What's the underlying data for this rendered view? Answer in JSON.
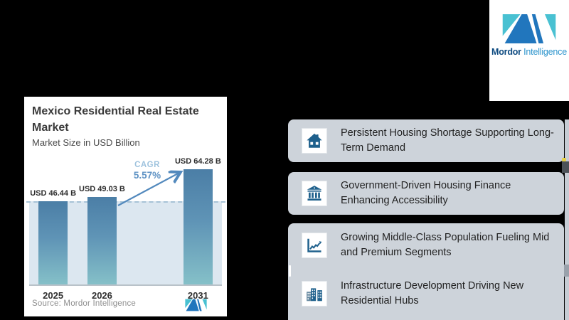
{
  "brand": {
    "logo_box": {
      "name_bold": "Mordor",
      "name_light": "Intelligence"
    },
    "colors": {
      "teal": "#49c1d2",
      "blue": "#2176bd",
      "navy": "#0d4a80",
      "light_blue": "#2a93cc"
    }
  },
  "chart_card": {
    "title": "Mexico Residential Real Estate Market",
    "subtitle": "Market Size in USD Billion",
    "source": "Source: Mordor Intelligence"
  },
  "chart_data": {
    "type": "bar",
    "title": "Mexico Residential Real Estate Market",
    "subtitle": "Market Size in USD Billion",
    "unit": "USD Billion",
    "categories": [
      "2025",
      "2026",
      "2031"
    ],
    "values": [
      46.44,
      49.03,
      64.28
    ],
    "value_labels": [
      "USD 46.44 B",
      "USD 49.03 B",
      "USD 64.28 B"
    ],
    "cagr_label": "CAGR",
    "cagr_value": "5.57%",
    "reference_line_value": 46.44,
    "ylim": [
      0,
      70
    ],
    "grid": false,
    "legend": false,
    "bar_centers_fraction": [
      0.124,
      0.378,
      0.876
    ],
    "bar_color_top": "#4b7ea6",
    "bar_color_mid": "#5f94b6",
    "bar_color_bottom": "#85c0c8",
    "panel_color": "#dce7f0",
    "dashed_line_color": "#a7c2d6",
    "arrow_color": "#5289bd",
    "cagr_label_color": "#9fc3de",
    "cagr_value_color": "#5e92c4"
  },
  "key_points": [
    {
      "icon": "house-icon",
      "text": "Persistent Housing Shortage Supporting Long-Term Demand"
    },
    {
      "icon": "bank-icon",
      "text": "Government-Driven Housing Finance Enhancing Accessibility"
    },
    {
      "icon": "line-chart-icon",
      "text": "Growing Middle-Class Population Fueling Mid and Premium Segments"
    },
    {
      "icon": "buildings-icon",
      "text": "Infrastructure Development Driving New Residential Hubs"
    }
  ],
  "key_point_style": {
    "box_bg": "#cdd3da",
    "icon_color": "#1e608c",
    "icon_secondary": "#64879f"
  }
}
